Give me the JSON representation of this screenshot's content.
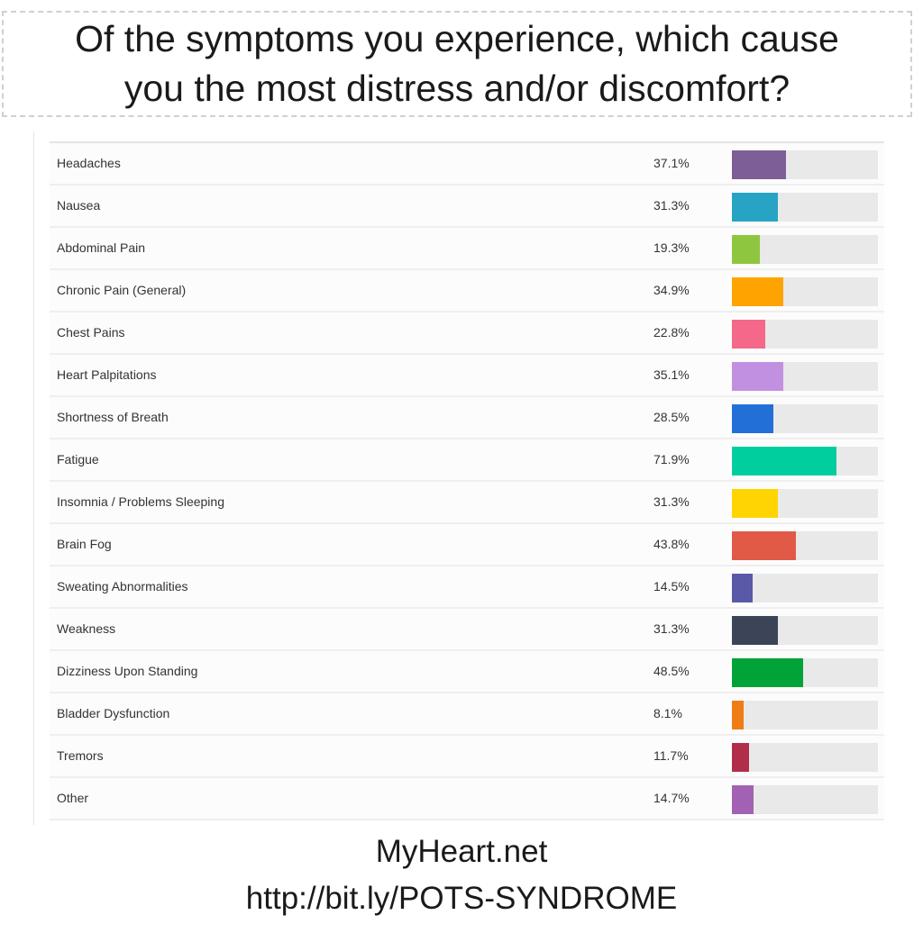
{
  "title_lines": [
    "Of the symptoms you experience, which cause",
    "you the most distress and/or discomfort?"
  ],
  "chart_data": {
    "type": "bar",
    "orientation": "horizontal",
    "title": "Of the symptoms you experience, which cause you the most distress and/or discomfort?",
    "xlim": [
      0,
      100
    ],
    "grid": false,
    "categories": [
      "Headaches",
      "Nausea",
      "Abdominal Pain",
      "Chronic Pain (General)",
      "Chest Pains",
      "Heart Palpitations",
      "Shortness of Breath",
      "Fatigue",
      "Insomnia / Problems Sleeping",
      "Brain Fog",
      "Sweating Abnormalities",
      "Weakness",
      "Dizziness Upon Standing",
      "Bladder Dysfunction",
      "Tremors",
      "Other"
    ],
    "values": [
      37.1,
      31.3,
      19.3,
      34.9,
      22.8,
      35.1,
      28.5,
      71.9,
      31.3,
      43.8,
      14.5,
      31.3,
      48.5,
      8.1,
      11.7,
      14.7
    ],
    "value_labels": [
      "37.1%",
      "31.3%",
      "19.3%",
      "34.9%",
      "22.8%",
      "35.1%",
      "28.5%",
      "71.9%",
      "31.3%",
      "43.8%",
      "14.5%",
      "31.3%",
      "48.5%",
      "8.1%",
      "11.7%",
      "14.7%"
    ],
    "colors": [
      "#7e5e97",
      "#27a3c4",
      "#8ec63f",
      "#ffa300",
      "#f4688a",
      "#c190e0",
      "#236fd8",
      "#00ce9f",
      "#ffd400",
      "#e05a47",
      "#5959a8",
      "#3c4458",
      "#00a338",
      "#f07c15",
      "#b12e4b",
      "#a261b3"
    ],
    "track_color": "#e9e9e9"
  },
  "footer": {
    "line1": "MyHeart.net",
    "line2": "http://bit.ly/POTS-SYNDROME"
  }
}
